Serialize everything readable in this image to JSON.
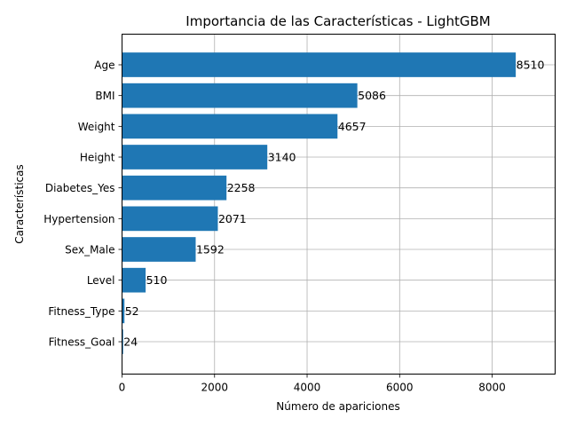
{
  "chart_data": {
    "type": "bar",
    "orientation": "horizontal",
    "title": "Importancia de las Características - LightGBM",
    "xlabel": "Número de apariciones",
    "ylabel": "Características",
    "categories": [
      "Age",
      "BMI",
      "Weight",
      "Height",
      "Diabetes_Yes",
      "Hypertension",
      "Sex_Male",
      "Level",
      "Fitness_Type",
      "Fitness_Goal"
    ],
    "values": [
      8510,
      5086,
      4657,
      3140,
      2258,
      2071,
      1592,
      510,
      52,
      24
    ],
    "data_labels": [
      "8510",
      "5086",
      "4657",
      "3140",
      "2258",
      "2071",
      "1592",
      "510",
      "52",
      "24"
    ],
    "xlim": [
      0,
      9361
    ],
    "xticks": [
      0,
      2000,
      4000,
      6000,
      8000
    ],
    "xtick_labels": [
      "0",
      "2000",
      "4000",
      "6000",
      "8000"
    ],
    "grid": true,
    "bar_color": "#1f77b4"
  }
}
